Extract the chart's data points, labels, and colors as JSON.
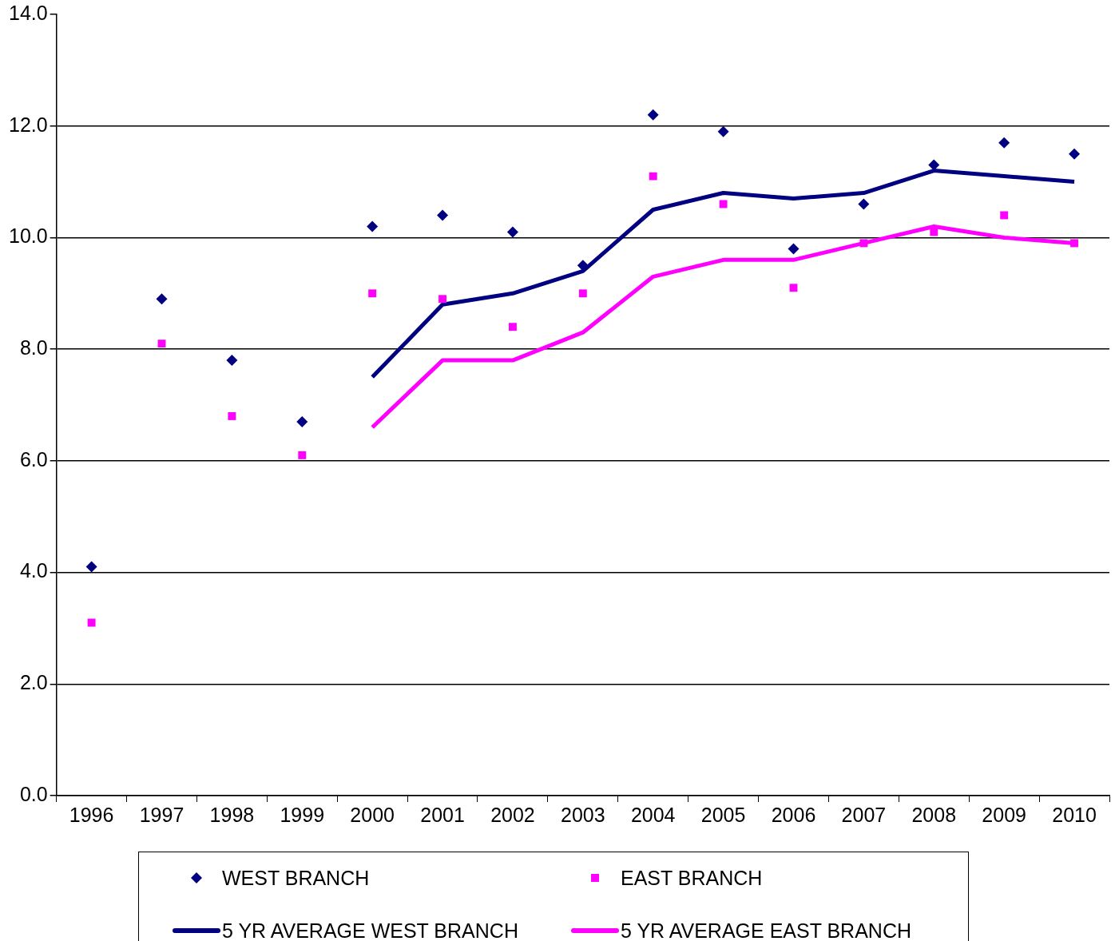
{
  "chart_data": {
    "type": "line",
    "categories": [
      "1996",
      "1997",
      "1998",
      "1999",
      "2000",
      "2001",
      "2002",
      "2003",
      "2004",
      "2005",
      "2006",
      "2007",
      "2008",
      "2009",
      "2010"
    ],
    "ylim": [
      0,
      14
    ],
    "yticks": [
      {
        "value": 0,
        "label": "0.0"
      },
      {
        "value": 2,
        "label": "2.0"
      },
      {
        "value": 4,
        "label": "4.0"
      },
      {
        "value": 6,
        "label": "6.0"
      },
      {
        "value": 8,
        "label": "8.0"
      },
      {
        "value": 10,
        "label": "10.0"
      },
      {
        "value": 12,
        "label": "12.0"
      },
      {
        "value": 14,
        "label": "14.0"
      }
    ],
    "grid": "y",
    "legend": "bottom",
    "series": [
      {
        "name": "WEST BRANCH",
        "type": "scatter",
        "marker": "diamond",
        "color": "#000080",
        "values": [
          4.1,
          8.9,
          7.8,
          6.7,
          10.2,
          10.4,
          10.1,
          9.5,
          12.2,
          11.9,
          9.8,
          10.6,
          11.3,
          11.7,
          11.5
        ]
      },
      {
        "name": "EAST BRANCH",
        "type": "scatter",
        "marker": "square",
        "color": "#ff00ff",
        "values": [
          3.1,
          8.1,
          6.8,
          6.1,
          9.0,
          8.9,
          8.4,
          9.0,
          11.1,
          10.6,
          9.1,
          9.9,
          10.1,
          10.4,
          9.9
        ]
      },
      {
        "name": "5 YR AVERAGE WEST BRANCH",
        "type": "line",
        "marker": "none",
        "color": "#000080",
        "values": [
          null,
          null,
          null,
          null,
          7.5,
          8.8,
          9.0,
          9.4,
          10.5,
          10.8,
          10.7,
          10.8,
          11.2,
          11.1,
          11.0
        ]
      },
      {
        "name": "5 YR AVERAGE EAST BRANCH",
        "type": "line",
        "marker": "none",
        "color": "#ff00ff",
        "values": [
          null,
          null,
          null,
          null,
          6.6,
          7.8,
          7.8,
          8.3,
          9.3,
          9.6,
          9.6,
          9.9,
          10.2,
          10.0,
          9.9
        ]
      }
    ]
  }
}
